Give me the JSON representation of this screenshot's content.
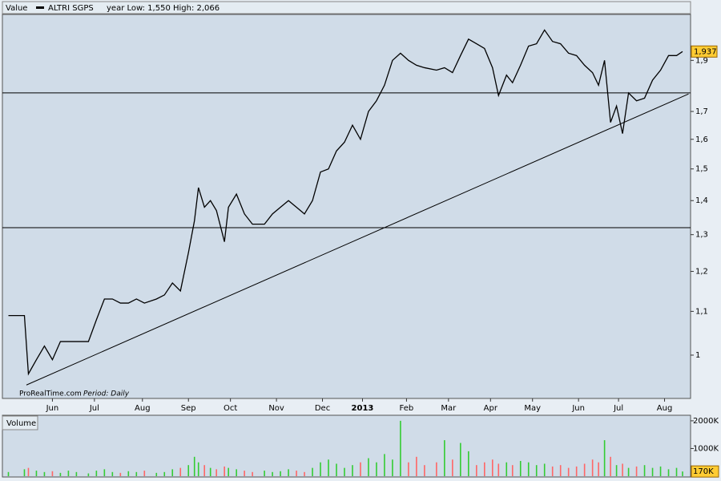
{
  "chart_data": [
    {
      "type": "line",
      "title": "ALTRI SGPS",
      "header_label": "Value",
      "subtitle": "year Low: 1,550 High: 2,066",
      "source": "ProRealTime.com",
      "period": "Period: Daily",
      "log_scale": true,
      "color": "#000000",
      "xlim": [
        0,
        344
      ],
      "xticks": [
        {
          "value": 25,
          "label": "Jun"
        },
        {
          "value": 46,
          "label": "Jul"
        },
        {
          "value": 70,
          "label": "Aug"
        },
        {
          "value": 93,
          "label": "Sep"
        },
        {
          "value": 114,
          "label": "Oct"
        },
        {
          "value": 137,
          "label": "Nov"
        },
        {
          "value": 160,
          "label": "Dec"
        },
        {
          "value": 180,
          "label": "2013"
        },
        {
          "value": 202,
          "label": "Feb"
        },
        {
          "value": 223,
          "label": "Mar"
        },
        {
          "value": 244,
          "label": "Apr"
        },
        {
          "value": 265,
          "label": "May"
        },
        {
          "value": 288,
          "label": "Jun"
        },
        {
          "value": 308,
          "label": "Jul"
        },
        {
          "value": 331,
          "label": "Aug"
        }
      ],
      "ylim": [
        0.91,
        2.1
      ],
      "yticks": [
        1,
        {
          "value": 1.1,
          "label": "1,1"
        },
        {
          "value": 1.2,
          "label": "1,2"
        },
        {
          "value": 1.3,
          "label": "1,3"
        },
        {
          "value": 1.4,
          "label": "1,4"
        },
        {
          "value": 1.5,
          "label": "1,5"
        },
        {
          "value": 1.6,
          "label": "1,6"
        },
        {
          "value": 1.7,
          "label": "1,7"
        },
        {
          "value": 1.9,
          "label": "1,9"
        }
      ],
      "x": [
        3,
        11,
        13,
        17,
        21,
        25,
        29,
        33,
        37,
        43,
        47,
        51,
        55,
        59,
        63,
        67,
        71,
        77,
        81,
        85,
        89,
        93,
        96,
        98,
        101,
        104,
        107,
        111,
        113,
        117,
        121,
        125,
        131,
        135,
        139,
        143,
        147,
        151,
        155,
        159,
        163,
        167,
        171,
        175,
        179,
        183,
        187,
        191,
        195,
        199,
        203,
        207,
        211,
        217,
        221,
        225,
        229,
        233,
        237,
        241,
        245,
        248,
        252,
        255,
        259,
        263,
        267,
        271,
        275,
        279,
        283,
        287,
        291,
        295,
        298,
        301,
        304,
        307,
        310,
        313,
        317,
        321,
        325,
        329,
        333,
        337,
        340
      ],
      "values": [
        1.09,
        1.09,
        0.96,
        0.99,
        1.02,
        0.99,
        1.03,
        1.03,
        1.03,
        1.03,
        1.08,
        1.13,
        1.13,
        1.12,
        1.12,
        1.13,
        1.12,
        1.13,
        1.14,
        1.17,
        1.15,
        1.25,
        1.34,
        1.44,
        1.38,
        1.4,
        1.37,
        1.28,
        1.38,
        1.42,
        1.36,
        1.33,
        1.33,
        1.36,
        1.38,
        1.4,
        1.38,
        1.36,
        1.4,
        1.49,
        1.5,
        1.56,
        1.59,
        1.65,
        1.6,
        1.7,
        1.74,
        1.8,
        1.9,
        1.93,
        1.9,
        1.88,
        1.87,
        1.86,
        1.87,
        1.85,
        1.92,
        1.99,
        1.97,
        1.95,
        1.87,
        1.76,
        1.84,
        1.81,
        1.88,
        1.96,
        1.97,
        2.03,
        1.98,
        1.97,
        1.93,
        1.92,
        1.88,
        1.85,
        1.8,
        1.9,
        1.66,
        1.72,
        1.62,
        1.77,
        1.74,
        1.75,
        1.82,
        1.86,
        1.92,
        1.92,
        1.937
      ],
      "last_value": {
        "value": 1.937,
        "label": "1,937"
      },
      "hlines": [
        1.77,
        1.32
      ],
      "trendline": {
        "x": [
          12,
          343
        ],
        "y": [
          0.937,
          1.766
        ]
      }
    },
    {
      "type": "bar",
      "title": "Volume",
      "up_color": "#33cc33",
      "down_color": "#ff6666",
      "xlim": [
        0,
        344
      ],
      "ylim": [
        0,
        2200000
      ],
      "yticks": [
        {
          "value": 1000000,
          "label": "1000K"
        },
        {
          "value": 2000000,
          "label": "2000K"
        }
      ],
      "last_value": {
        "value": 170000,
        "label": "170K"
      },
      "x": [
        3,
        11,
        13,
        17,
        21,
        25,
        29,
        33,
        37,
        43,
        47,
        51,
        55,
        59,
        63,
        67,
        71,
        77,
        81,
        85,
        89,
        93,
        96,
        98,
        101,
        104,
        107,
        111,
        113,
        117,
        121,
        125,
        131,
        135,
        139,
        143,
        147,
        151,
        155,
        159,
        163,
        167,
        171,
        175,
        179,
        183,
        187,
        191,
        195,
        199,
        203,
        207,
        211,
        217,
        221,
        225,
        229,
        233,
        237,
        241,
        245,
        248,
        252,
        255,
        259,
        263,
        267,
        271,
        275,
        279,
        283,
        287,
        291,
        295,
        298,
        301,
        304,
        307,
        310,
        313,
        317,
        321,
        325,
        329,
        333,
        337,
        340
      ],
      "values": [
        150000,
        250000,
        300000,
        200000,
        150000,
        180000,
        120000,
        200000,
        150000,
        100000,
        200000,
        250000,
        150000,
        120000,
        180000,
        150000,
        200000,
        120000,
        150000,
        250000,
        300000,
        400000,
        700000,
        500000,
        400000,
        300000,
        250000,
        350000,
        300000,
        250000,
        200000,
        150000,
        200000,
        150000,
        180000,
        250000,
        200000,
        150000,
        300000,
        500000,
        600000,
        450000,
        300000,
        400000,
        500000,
        650000,
        500000,
        800000,
        600000,
        2000000,
        500000,
        700000,
        400000,
        500000,
        1300000,
        600000,
        1200000,
        900000,
        400000,
        500000,
        600000,
        450000,
        500000,
        400000,
        550000,
        500000,
        400000,
        450000,
        350000,
        400000,
        300000,
        350000,
        450000,
        600000,
        500000,
        1300000,
        700000,
        400000,
        450000,
        300000,
        350000,
        400000,
        300000,
        350000,
        250000,
        300000,
        170000
      ]
    }
  ]
}
